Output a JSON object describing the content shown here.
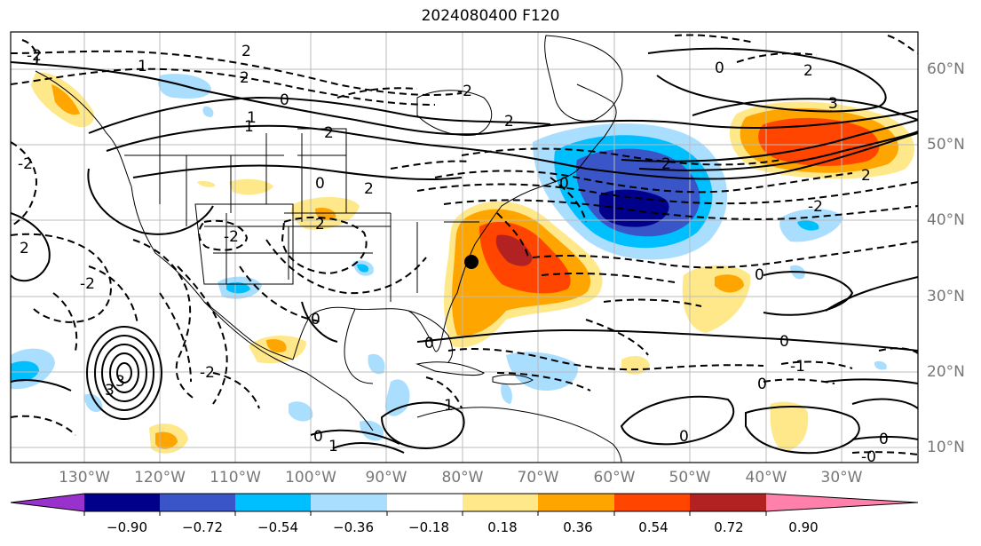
{
  "title": "2024080400 F120",
  "axes": {
    "lon_labels": [
      "130°W",
      "120°W",
      "110°W",
      "100°W",
      "90°W",
      "80°W",
      "70°W",
      "60°W",
      "50°W",
      "40°W",
      "30°W"
    ],
    "lat_labels": [
      "60°N",
      "50°N",
      "40°N",
      "30°N",
      "20°N",
      "10°N"
    ]
  },
  "colorbar": {
    "colors": [
      "#9932cc",
      "#00008b",
      "#3a55c8",
      "#00bfff",
      "#aadeff",
      "#ffffff",
      "#ffe88a",
      "#ffa500",
      "#ff4500",
      "#b22222",
      "#ff80aa"
    ],
    "tick_labels": [
      "−0.90",
      "−0.72",
      "−0.54",
      "−0.36",
      "−0.18",
      "0.18",
      "0.36",
      "0.54",
      "0.72",
      "0.90"
    ]
  },
  "contour_labels": [
    "-2",
    "1",
    "2",
    "0",
    "2",
    "1",
    "2",
    "0",
    "0",
    "2",
    "3",
    "-2",
    "-2",
    "2",
    "2",
    "3",
    "0",
    "-2",
    "2",
    "-2",
    "-2",
    "2",
    "0",
    "1",
    "0",
    "0",
    "0",
    "0",
    "1",
    "0",
    "2",
    "3",
    "2",
    "0",
    "0",
    "1",
    "-2",
    "-0",
    "-1"
  ],
  "legend_colors": {
    "negative_contour": "#000000",
    "positive_contour": "#000000",
    "grid": "#bbbbbb",
    "coastline": "#000000"
  }
}
